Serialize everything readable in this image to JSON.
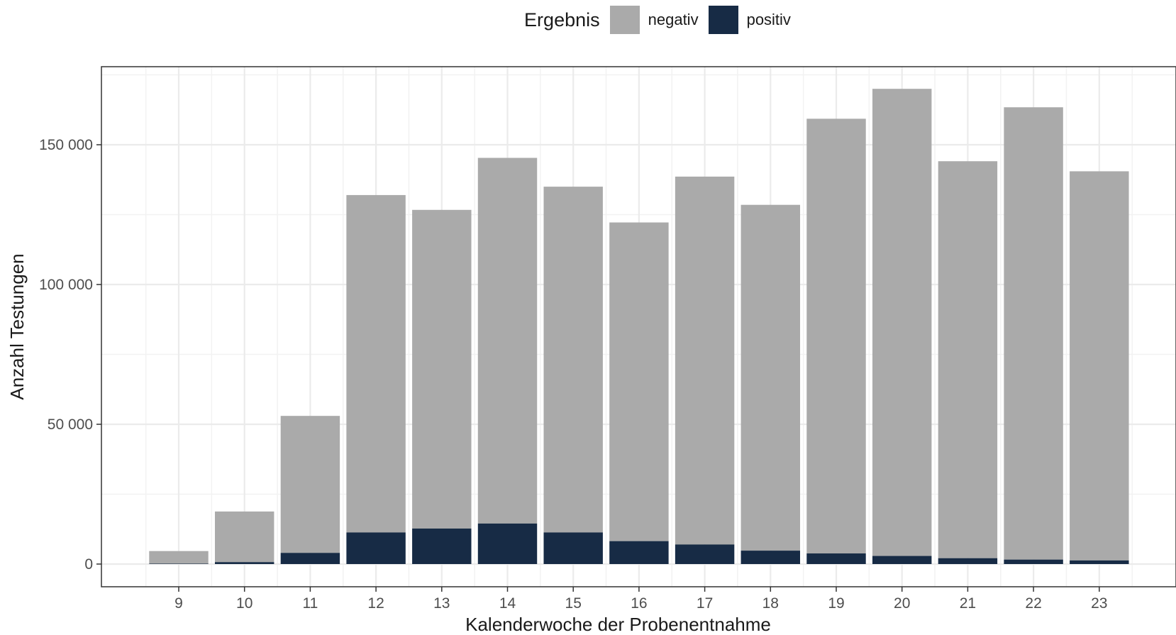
{
  "chart_data": {
    "type": "bar",
    "stacked": true,
    "xlabel": "Kalenderwoche der Probenentnahme",
    "ylabel": "Anzahl Testungen",
    "ylim": [
      0,
      170000
    ],
    "yticks": [
      0,
      50000,
      100000,
      150000
    ],
    "ytick_labels": [
      "0",
      "50 000",
      "100 000",
      "150 000"
    ],
    "categories": [
      "9",
      "10",
      "11",
      "12",
      "13",
      "14",
      "15",
      "16",
      "17",
      "18",
      "19",
      "20",
      "21",
      "22",
      "23"
    ],
    "legend": {
      "title": "Ergebnis",
      "position": "top"
    },
    "grid": true,
    "series": [
      {
        "name": "positiv",
        "color": "#172b45",
        "values": [
          150,
          700,
          4000,
          11300,
          12700,
          14500,
          11300,
          8200,
          7000,
          4800,
          3800,
          2900,
          2100,
          1600,
          1300
        ]
      },
      {
        "name": "negativ",
        "color": "#aaaaaa",
        "values": [
          4500,
          18100,
          49000,
          120700,
          114000,
          130800,
          123700,
          114000,
          131600,
          123700,
          155500,
          167100,
          142000,
          161800,
          139200
        ]
      }
    ]
  }
}
